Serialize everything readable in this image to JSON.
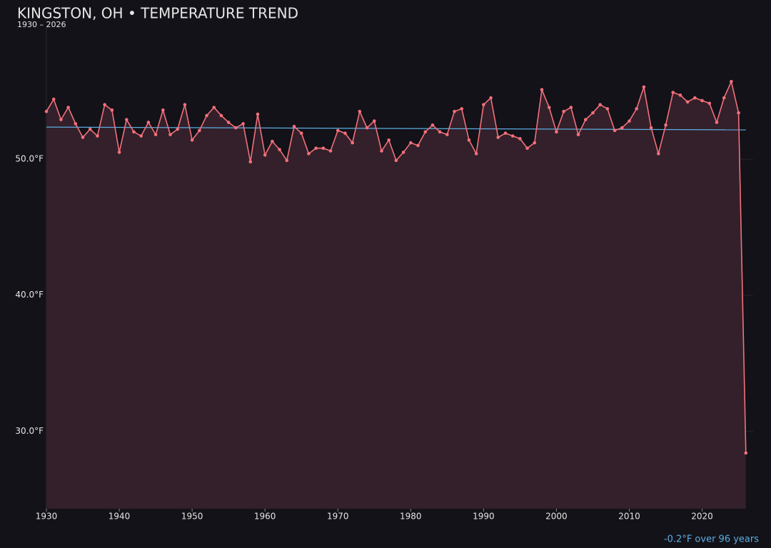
{
  "chart_data": {
    "type": "line",
    "title": "KINGSTON, OH • TEMPERATURE TREND",
    "subtitle": "1930 – 2026",
    "annotation": "-0.2°F over 96 years",
    "x": [
      1930,
      1931,
      1932,
      1933,
      1934,
      1935,
      1936,
      1937,
      1938,
      1939,
      1940,
      1941,
      1942,
      1943,
      1944,
      1945,
      1946,
      1947,
      1948,
      1949,
      1950,
      1951,
      1952,
      1953,
      1954,
      1955,
      1956,
      1957,
      1958,
      1959,
      1960,
      1961,
      1962,
      1963,
      1964,
      1965,
      1966,
      1967,
      1968,
      1969,
      1970,
      1971,
      1972,
      1973,
      1974,
      1975,
      1976,
      1977,
      1978,
      1979,
      1980,
      1981,
      1982,
      1983,
      1984,
      1985,
      1986,
      1987,
      1988,
      1989,
      1990,
      1991,
      1992,
      1993,
      1994,
      1995,
      1996,
      1997,
      1998,
      1999,
      2000,
      2001,
      2002,
      2003,
      2004,
      2005,
      2006,
      2007,
      2008,
      2009,
      2010,
      2011,
      2012,
      2013,
      2014,
      2015,
      2016,
      2017,
      2018,
      2019,
      2020,
      2021,
      2022,
      2023,
      2024,
      2025,
      2026
    ],
    "series": [
      {
        "color": "#f2707a",
        "values": [
          53.5,
          54.4,
          52.9,
          53.8,
          52.6,
          51.6,
          52.2,
          51.7,
          54.0,
          53.6,
          50.5,
          52.9,
          52.0,
          51.7,
          52.7,
          51.8,
          53.6,
          51.8,
          52.2,
          54.0,
          51.4,
          52.1,
          53.2,
          53.8,
          53.2,
          52.7,
          52.3,
          52.6,
          49.8,
          53.3,
          50.3,
          51.3,
          50.7,
          49.9,
          52.4,
          51.9,
          50.4,
          50.8,
          50.8,
          50.6,
          52.1,
          51.9,
          51.2,
          53.5,
          52.3,
          52.8,
          50.6,
          51.4,
          49.9,
          50.5,
          51.2,
          51.0,
          52.0,
          52.5,
          52.0,
          51.8,
          53.5,
          53.7,
          51.4,
          50.4,
          54.0,
          54.5,
          51.6,
          51.9,
          51.7,
          51.5,
          50.8,
          51.2,
          55.1,
          53.8,
          52.0,
          53.5,
          53.8,
          51.8,
          52.9,
          53.4,
          54.0,
          53.7,
          52.1,
          52.3,
          52.8,
          53.7,
          55.3,
          52.3,
          50.4,
          52.5,
          54.9,
          54.7,
          54.2,
          54.5,
          54.3,
          54.1,
          52.7,
          54.5,
          55.7,
          53.4,
          28.4
        ]
      }
    ],
    "trend": {
      "color": "#5dade2",
      "x": [
        1930,
        2026
      ],
      "values": [
        52.35,
        52.15
      ]
    },
    "area_color": "#33202a",
    "xlim": [
      1930,
      2027
    ],
    "ylim": [
      24.3,
      59.7
    ],
    "xticks": [
      1930,
      1940,
      1950,
      1960,
      1970,
      1980,
      1990,
      2000,
      2010,
      2020
    ],
    "yticks": [
      {
        "value": 30,
        "label": "30.0°F"
      },
      {
        "value": 40,
        "label": "40.0°F"
      },
      {
        "value": 50,
        "label": "50.0°F"
      }
    ],
    "grid": true
  }
}
